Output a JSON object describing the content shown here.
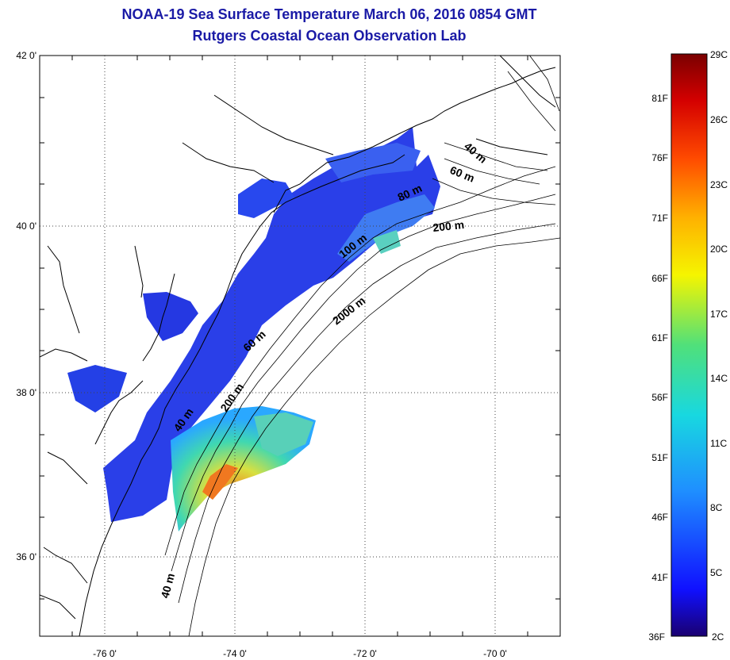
{
  "header": {
    "title": "NOAA-19 Sea Surface Temperature March 06, 2016 0854 GMT",
    "subtitle": "Rutgers Coastal Ocean Observation Lab"
  },
  "map": {
    "lat_ticks": [
      "42 0'",
      "40 0'",
      "38 0'",
      "36 0'"
    ],
    "lon_ticks": [
      "-76 0'",
      "-74 0'",
      "-72 0'",
      "-70 0'"
    ],
    "contours": [
      "40 m",
      "60 m",
      "80 m",
      "100 m",
      "200 m",
      "2000 m",
      "60 m",
      "40 m",
      "200 m",
      "40 m"
    ],
    "grid": "dotted"
  },
  "colorbar": {
    "fahrenheit": [
      "81F",
      "76F",
      "71F",
      "66F",
      "61F",
      "56F",
      "51F",
      "46F",
      "41F",
      "36F"
    ],
    "celsius": [
      "29C",
      "26C",
      "23C",
      "20C",
      "17C",
      "14C",
      "11C",
      "8C",
      "5C",
      "2C"
    ],
    "colors": [
      "#1a0070",
      "#1010ff",
      "#1f8fff",
      "#18d8e0",
      "#50e07a",
      "#f5f500",
      "#ffb000",
      "#ff4b00",
      "#d40000",
      "#7a0000"
    ]
  }
}
